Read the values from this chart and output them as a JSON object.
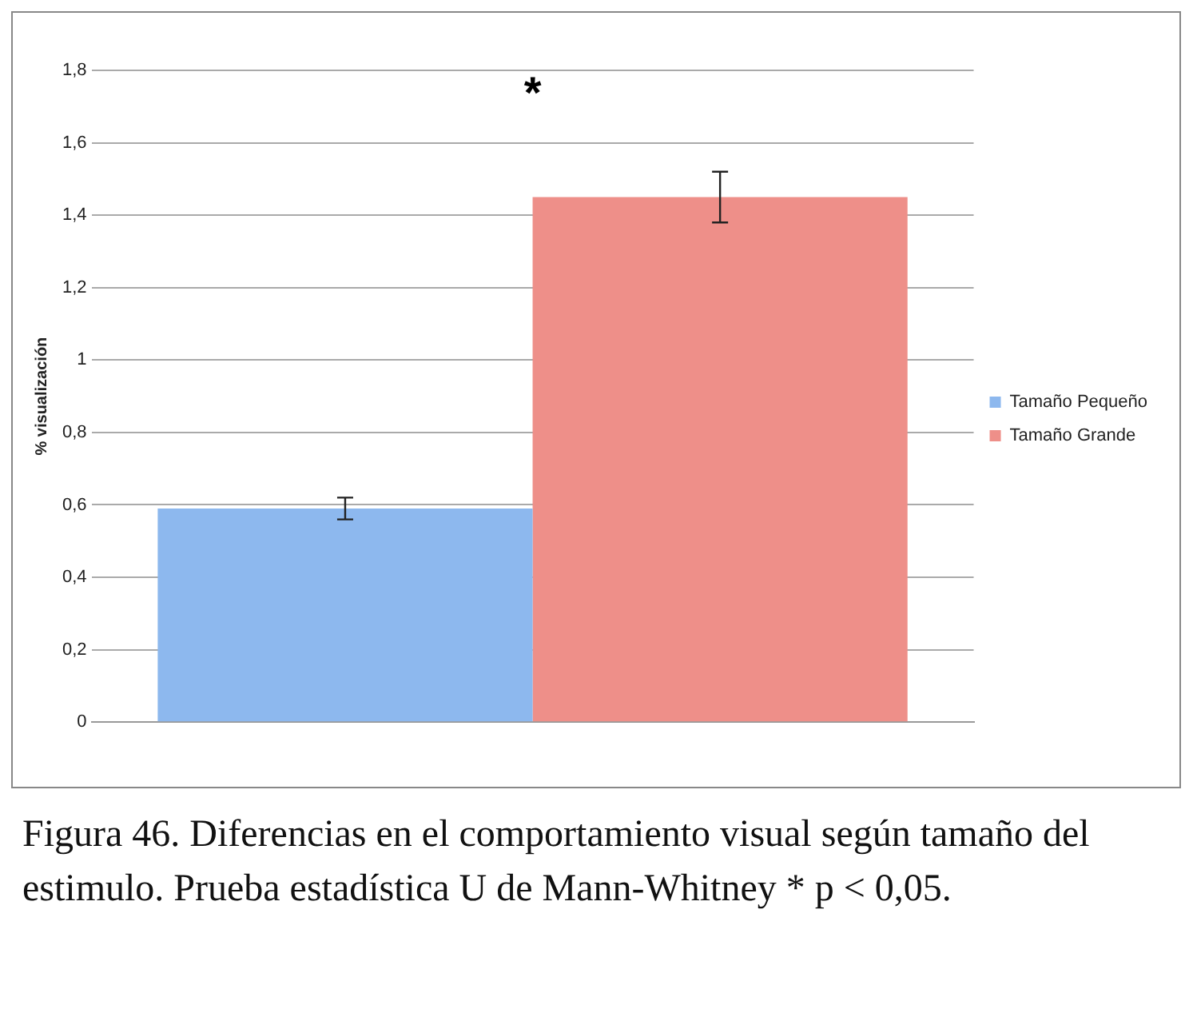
{
  "chart_data": {
    "type": "bar",
    "ylabel": "% visualización",
    "categories": [
      null
    ],
    "series": [
      {
        "name": "Tamaño Pequeño",
        "color": "#8db8ee",
        "values": [
          0.59
        ],
        "errors": [
          0.03
        ]
      },
      {
        "name": "Tamaño Grande",
        "color": "#ee8f89",
        "values": [
          1.45
        ],
        "errors": [
          0.07
        ]
      }
    ],
    "ylim": [
      0,
      1.8
    ],
    "yticks": [
      0,
      {
        "value": 0.2,
        "label": "0,2"
      },
      {
        "value": 0.4,
        "label": "0,4"
      },
      {
        "value": 0.6,
        "label": "0,6"
      },
      {
        "value": 0.8,
        "label": "0,8"
      },
      1,
      {
        "value": 1.2,
        "label": "1,2"
      },
      {
        "value": 1.4,
        "label": "1,4"
      },
      {
        "value": 1.6,
        "label": "1,6"
      },
      {
        "value": 1.8,
        "label": "1,8"
      }
    ],
    "grid": "y",
    "legend": "right",
    "annotations": [
      "*",
      "Figura 46. Diferencias en el comportamiento visual según tamaño del estimulo. Prueba estadística U de Mann-Whitney * p < 0,05."
    ]
  }
}
